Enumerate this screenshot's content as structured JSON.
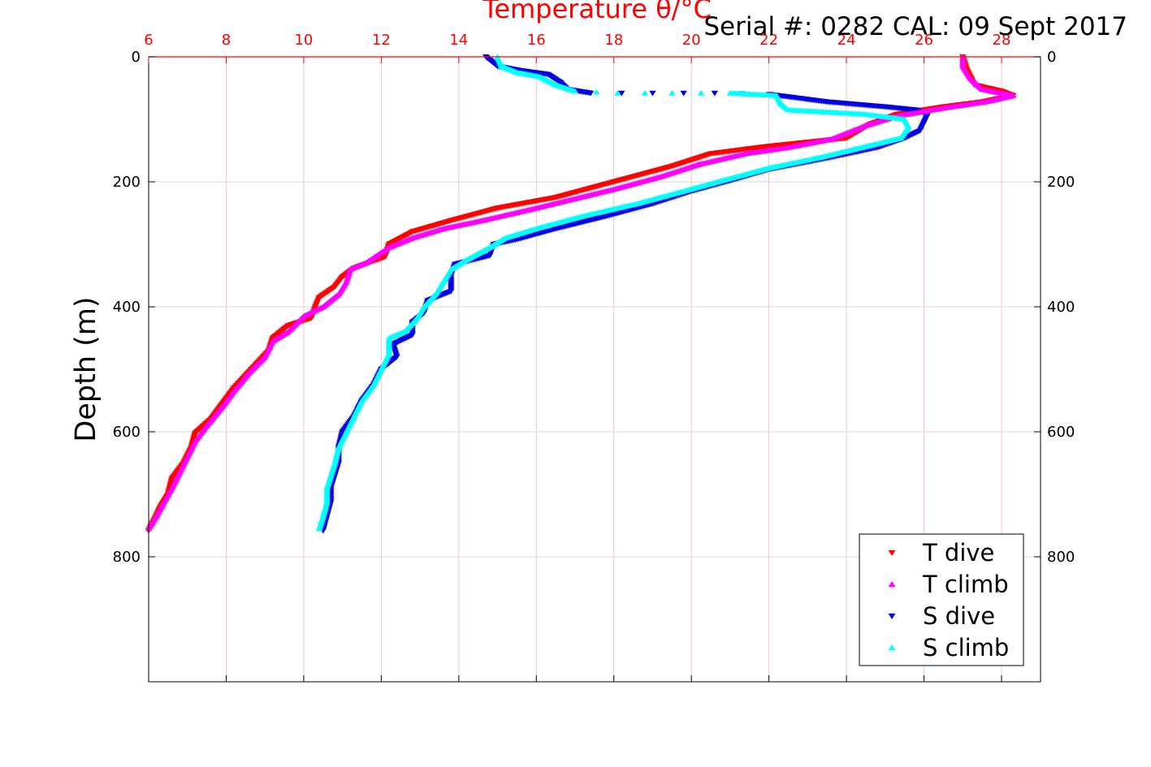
{
  "header": {
    "serial_text": "Serial #: 0282  CAL: 09 Sept 2017"
  },
  "chart_data": {
    "type": "scatter",
    "title": "Temperature θ/°C",
    "xlabel_top": "Temperature θ/°C",
    "ylabel": "Depth (m)",
    "xlim": [
      6,
      29
    ],
    "ylim": [
      0,
      1000
    ],
    "y_reversed": true,
    "grid": true,
    "x_ticks": [
      6,
      8,
      10,
      12,
      14,
      16,
      18,
      20,
      22,
      24,
      26,
      28
    ],
    "y_ticks": [
      0,
      200,
      400,
      600,
      800
    ],
    "legend_placement": "bottom-right",
    "colors": {
      "t_dive": "#ff0000",
      "t_climb": "#ff00ff",
      "s_dive": "#0000e0",
      "s_climb": "#00ffff",
      "top_axis": "#ff0000",
      "grid_x": "#f0c8c8",
      "grid_y": "#d8d8d8"
    },
    "series": [
      {
        "name": "T dive",
        "marker": "triangle-down",
        "color": "#ff0000",
        "points": [
          [
            27.0,
            0
          ],
          [
            27.1,
            20
          ],
          [
            27.3,
            45
          ],
          [
            28.0,
            55
          ],
          [
            28.3,
            62
          ],
          [
            27.5,
            72
          ],
          [
            26.5,
            80
          ],
          [
            25.3,
            92
          ],
          [
            24.6,
            108
          ],
          [
            24.0,
            130
          ],
          [
            22.0,
            143
          ],
          [
            20.5,
            155
          ],
          [
            19.5,
            175
          ],
          [
            18.0,
            200
          ],
          [
            16.5,
            225
          ],
          [
            15.0,
            242
          ],
          [
            13.8,
            262
          ],
          [
            12.8,
            280
          ],
          [
            12.2,
            300
          ],
          [
            12.1,
            320
          ],
          [
            11.3,
            338
          ],
          [
            11.0,
            352
          ],
          [
            10.8,
            368
          ],
          [
            10.4,
            385
          ],
          [
            10.3,
            400
          ],
          [
            10.2,
            418
          ],
          [
            9.6,
            430
          ],
          [
            9.2,
            450
          ],
          [
            9.1,
            470
          ],
          [
            8.8,
            490
          ],
          [
            8.5,
            510
          ],
          [
            8.2,
            530
          ],
          [
            7.9,
            555
          ],
          [
            7.6,
            580
          ],
          [
            7.2,
            602
          ],
          [
            7.1,
            625
          ],
          [
            6.9,
            650
          ],
          [
            6.6,
            675
          ],
          [
            6.5,
            700
          ],
          [
            6.3,
            720
          ],
          [
            6.15,
            740
          ],
          [
            6.0,
            758
          ]
        ]
      },
      {
        "name": "T climb",
        "marker": "triangle-up",
        "color": "#ff00ff",
        "points": [
          [
            6.0,
            755
          ],
          [
            6.2,
            735
          ],
          [
            6.4,
            712
          ],
          [
            6.6,
            690
          ],
          [
            6.8,
            665
          ],
          [
            7.0,
            640
          ],
          [
            7.2,
            615
          ],
          [
            7.5,
            590
          ],
          [
            7.9,
            560
          ],
          [
            8.2,
            535
          ],
          [
            8.6,
            505
          ],
          [
            9.0,
            480
          ],
          [
            9.2,
            455
          ],
          [
            9.6,
            440
          ],
          [
            10.0,
            415
          ],
          [
            10.5,
            400
          ],
          [
            10.9,
            380
          ],
          [
            11.1,
            360
          ],
          [
            11.2,
            340
          ],
          [
            11.6,
            330
          ],
          [
            12.2,
            305
          ],
          [
            12.8,
            290
          ],
          [
            13.6,
            275
          ],
          [
            14.6,
            262
          ],
          [
            15.8,
            245
          ],
          [
            16.8,
            230
          ],
          [
            18.0,
            212
          ],
          [
            19.2,
            192
          ],
          [
            20.2,
            172
          ],
          [
            21.4,
            155
          ],
          [
            22.5,
            145
          ],
          [
            23.6,
            132
          ],
          [
            24.5,
            110
          ],
          [
            25.3,
            95
          ],
          [
            26.5,
            82
          ],
          [
            27.6,
            72
          ],
          [
            28.3,
            62
          ],
          [
            27.5,
            52
          ],
          [
            27.2,
            35
          ],
          [
            27.0,
            15
          ],
          [
            27.0,
            0
          ]
        ]
      },
      {
        "name": "S dive",
        "marker": "triangle-down",
        "color": "#0000e0",
        "points": [
          [
            14.7,
            0
          ],
          [
            15.0,
            15
          ],
          [
            15.6,
            22
          ],
          [
            16.3,
            28
          ],
          [
            16.6,
            40
          ],
          [
            16.8,
            52
          ],
          [
            17.4,
            58
          ],
          [
            19.0,
            58
          ],
          [
            20.6,
            58
          ],
          [
            22.0,
            60
          ],
          [
            23.5,
            72
          ],
          [
            25.0,
            80
          ],
          [
            25.8,
            85
          ],
          [
            26.1,
            92
          ],
          [
            26.0,
            105
          ],
          [
            25.9,
            118
          ],
          [
            25.5,
            130
          ],
          [
            24.8,
            145
          ],
          [
            23.5,
            162
          ],
          [
            22.0,
            180
          ],
          [
            21.0,
            198
          ],
          [
            20.0,
            215
          ],
          [
            19.0,
            235
          ],
          [
            17.8,
            255
          ],
          [
            16.5,
            275
          ],
          [
            15.5,
            292
          ],
          [
            14.9,
            300
          ],
          [
            14.8,
            318
          ],
          [
            13.9,
            332
          ],
          [
            13.8,
            350
          ],
          [
            13.8,
            375
          ],
          [
            13.2,
            390
          ],
          [
            13.1,
            410
          ],
          [
            12.8,
            425
          ],
          [
            12.8,
            445
          ],
          [
            12.3,
            460
          ],
          [
            12.4,
            480
          ],
          [
            12.0,
            500
          ],
          [
            11.8,
            525
          ],
          [
            11.5,
            550
          ],
          [
            11.3,
            575
          ],
          [
            11.0,
            600
          ],
          [
            10.9,
            625
          ],
          [
            10.9,
            650
          ],
          [
            10.8,
            670
          ],
          [
            10.7,
            690
          ],
          [
            10.7,
            712
          ],
          [
            10.6,
            735
          ],
          [
            10.5,
            758
          ]
        ]
      },
      {
        "name": "S climb",
        "marker": "triangle-up",
        "color": "#00ffff",
        "points": [
          [
            10.4,
            755
          ],
          [
            10.5,
            735
          ],
          [
            10.6,
            712
          ],
          [
            10.6,
            690
          ],
          [
            10.7,
            670
          ],
          [
            10.8,
            650
          ],
          [
            10.9,
            625
          ],
          [
            11.1,
            600
          ],
          [
            11.3,
            575
          ],
          [
            11.5,
            550
          ],
          [
            11.8,
            525
          ],
          [
            12.0,
            500
          ],
          [
            12.2,
            475
          ],
          [
            12.2,
            450
          ],
          [
            12.6,
            440
          ],
          [
            12.9,
            420
          ],
          [
            13.1,
            400
          ],
          [
            13.4,
            380
          ],
          [
            13.6,
            360
          ],
          [
            13.8,
            340
          ],
          [
            14.2,
            325
          ],
          [
            14.8,
            305
          ],
          [
            15.2,
            290
          ],
          [
            16.0,
            275
          ],
          [
            17.2,
            255
          ],
          [
            18.6,
            235
          ],
          [
            19.8,
            215
          ],
          [
            20.8,
            198
          ],
          [
            22.0,
            178
          ],
          [
            23.4,
            160
          ],
          [
            24.4,
            145
          ],
          [
            25.4,
            130
          ],
          [
            25.6,
            112
          ],
          [
            25.5,
            100
          ],
          [
            24.5,
            92
          ],
          [
            22.5,
            85
          ],
          [
            22.3,
            75
          ],
          [
            22.2,
            62
          ],
          [
            21.0,
            58
          ],
          [
            19.5,
            58
          ],
          [
            18.1,
            58
          ],
          [
            17.0,
            55
          ],
          [
            16.5,
            45
          ],
          [
            16.1,
            32
          ],
          [
            15.5,
            25
          ],
          [
            15.1,
            15
          ],
          [
            15.0,
            0
          ]
        ]
      }
    ]
  }
}
